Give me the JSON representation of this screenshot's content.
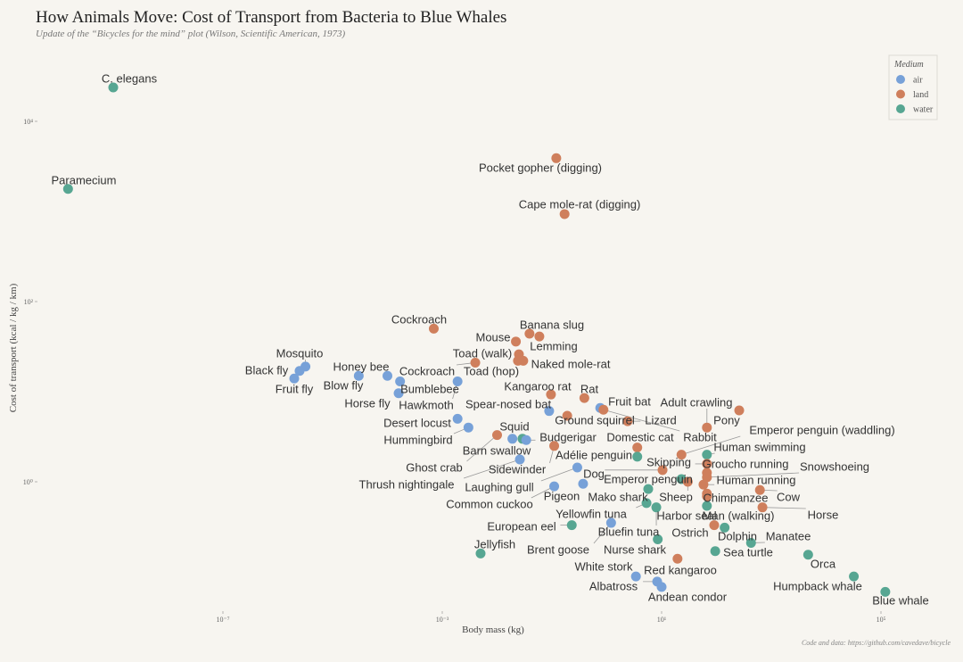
{
  "chart_data": {
    "type": "scatter",
    "title": "How Animals Move: Cost of Transport from Bacteria to Blue Whales",
    "subtitle": "Update of the “Bicycles for the mind” plot (Wilson, Scientific American, 1973)",
    "xlabel": "Body mass (kg)",
    "ylabel": "Cost of transport (kcal / kg / km)",
    "xscale": "log",
    "yscale": "log",
    "x_ticks": [
      {
        "value": 1e-07,
        "label": "10⁻⁷"
      },
      {
        "value": 0.001,
        "label": "10⁻³"
      },
      {
        "value": 10,
        "label": "10¹"
      },
      {
        "value": 100000,
        "label": "10⁵"
      }
    ],
    "y_ticks": [
      {
        "value": 1,
        "label": "10⁰"
      },
      {
        "value": 100,
        "label": "10²"
      },
      {
        "value": 10000,
        "label": "10⁴"
      }
    ],
    "grid": false,
    "caption": "Code and data: https://github.com/cavedave/bicycle",
    "legend": {
      "title": "Medium",
      "position": "top-right",
      "entries": [
        {
          "key": "air",
          "label": "air",
          "color": "#77a1d8"
        },
        {
          "key": "land",
          "label": "land",
          "color": "#cf7f5c"
        },
        {
          "key": "water",
          "label": "water",
          "color": "#57a692"
        }
      ]
    },
    "points": [
      {
        "name": "C. elegans",
        "medium": "water",
        "mass": 1e-09,
        "cost": 23800
      },
      {
        "name": "Paramecium",
        "medium": "water",
        "mass": 1.5e-10,
        "cost": 1780
      },
      {
        "name": "Pocket gopher (digging)",
        "medium": "land",
        "mass": 0.12,
        "cost": 3900
      },
      {
        "name": "Cape mole-rat (digging)",
        "medium": "land",
        "mass": 0.17,
        "cost": 935
      },
      {
        "name": "Cockroach",
        "medium": "land",
        "mass": 0.0007,
        "cost": 50
      },
      {
        "name": "Mosquito",
        "medium": "air",
        "mass": 3.2e-06,
        "cost": 19
      },
      {
        "name": "Black fly",
        "medium": "air",
        "mass": 2.5e-06,
        "cost": 17
      },
      {
        "name": "Fruit fly",
        "medium": "air",
        "mass": 2e-06,
        "cost": 14
      },
      {
        "name": "Honey bee",
        "medium": "air",
        "mass": 0.0001,
        "cost": 15
      },
      {
        "name": "Blow fly",
        "medium": "air",
        "mass": 3e-05,
        "cost": 15
      },
      {
        "name": "Bumblebee",
        "medium": "air",
        "mass": 0.00017,
        "cost": 13
      },
      {
        "name": "Horse fly",
        "medium": "air",
        "mass": 0.00016,
        "cost": 9.6
      },
      {
        "name": "Hawkmoth",
        "medium": "air",
        "mass": 0.0019,
        "cost": 13
      },
      {
        "name": "Cockroach",
        "medium": "land",
        "mass": 0.004,
        "cost": 21
      },
      {
        "name": "Toad (walk)",
        "medium": "land",
        "mass": 0.025,
        "cost": 26
      },
      {
        "name": "Toad (hop)",
        "medium": "land",
        "mass": 0.024,
        "cost": 22
      },
      {
        "name": "Naked mole-rat",
        "medium": "land",
        "mass": 0.03,
        "cost": 22
      },
      {
        "name": "Mouse",
        "medium": "land",
        "mass": 0.022,
        "cost": 36
      },
      {
        "name": "Banana slug",
        "medium": "land",
        "mass": 0.039,
        "cost": 44
      },
      {
        "name": "Lemming",
        "medium": "land",
        "mass": 0.059,
        "cost": 41
      },
      {
        "name": "Spear-nosed bat",
        "medium": "air",
        "mass": 0.089,
        "cost": 6.1
      },
      {
        "name": "Kangaroo rat",
        "medium": "land",
        "mass": 0.096,
        "cost": 9.3
      },
      {
        "name": "Rat",
        "medium": "land",
        "mass": 0.39,
        "cost": 8.5
      },
      {
        "name": "Ground squirrel",
        "medium": "land",
        "mass": 0.19,
        "cost": 5.4
      },
      {
        "name": "Fruit bat",
        "medium": "air",
        "mass": 0.76,
        "cost": 6.6
      },
      {
        "name": "Rabbit",
        "medium": "land",
        "mass": 0.87,
        "cost": 6.3
      },
      {
        "name": "Lizard",
        "medium": "land",
        "mass": 2.4,
        "cost": 4.7
      },
      {
        "name": "Desert locust",
        "medium": "air",
        "mass": 0.0019,
        "cost": 5.0
      },
      {
        "name": "Hummingbird",
        "medium": "air",
        "mass": 0.003,
        "cost": 4.0
      },
      {
        "name": "Ghost crab",
        "medium": "land",
        "mass": 0.01,
        "cost": 3.3
      },
      {
        "name": "Barn swallow",
        "medium": "air",
        "mass": 0.019,
        "cost": 3.0
      },
      {
        "name": "Squid",
        "medium": "water",
        "mass": 0.029,
        "cost": 3.0
      },
      {
        "name": "Budgerigar",
        "medium": "air",
        "mass": 0.034,
        "cost": 2.9
      },
      {
        "name": "Sidewinder",
        "medium": "land",
        "mass": 0.11,
        "cost": 2.5
      },
      {
        "name": "Thrush nightingale",
        "medium": "air",
        "mass": 0.026,
        "cost": 1.77
      },
      {
        "name": "Laughing gull",
        "medium": "air",
        "mass": 0.29,
        "cost": 1.44
      },
      {
        "name": "Common cuckoo",
        "medium": "air",
        "mass": 0.11,
        "cost": 0.89
      },
      {
        "name": "Pigeon",
        "medium": "air",
        "mass": 0.37,
        "cost": 0.95
      },
      {
        "name": "Dog",
        "medium": "land",
        "mass": 10.4,
        "cost": 1.35
      },
      {
        "name": "Domestic cat",
        "medium": "land",
        "mass": 3.6,
        "cost": 2.4
      },
      {
        "name": "Adélie penguin",
        "medium": "water",
        "mass": 3.6,
        "cost": 1.9
      },
      {
        "name": "Adult crawling",
        "medium": "land",
        "mass": 67,
        "cost": 4.0
      },
      {
        "name": "Pony",
        "medium": "land",
        "mass": 260,
        "cost": 6.2
      },
      {
        "name": "Emperor penguin (waddling)",
        "medium": "land",
        "mass": 23,
        "cost": 2.0
      },
      {
        "name": "Human swimming",
        "medium": "water",
        "mass": 67,
        "cost": 2.0
      },
      {
        "name": "Skipping",
        "medium": "land",
        "mass": 67,
        "cost": 1.58
      },
      {
        "name": "Groucho running",
        "medium": "land",
        "mass": 67,
        "cost": 1.26
      },
      {
        "name": "Snowshoeing",
        "medium": "land",
        "mass": 67,
        "cost": 1.12
      },
      {
        "name": "Human running",
        "medium": "land",
        "mass": 58,
        "cost": 0.93
      },
      {
        "name": "Chimpanzee",
        "medium": "land",
        "mass": 67,
        "cost": 0.74
      },
      {
        "name": "Man (walking)",
        "medium": "land",
        "mass": 67,
        "cost": 0.69
      },
      {
        "name": "Cow",
        "medium": "land",
        "mass": 620,
        "cost": 0.81
      },
      {
        "name": "Horse",
        "medium": "land",
        "mass": 690,
        "cost": 0.52
      },
      {
        "name": "Emperor penguin",
        "medium": "water",
        "mass": 23,
        "cost": 1.07
      },
      {
        "name": "Sheep",
        "medium": "land",
        "mass": 30,
        "cost": 1.0
      },
      {
        "name": "Mako shark",
        "medium": "water",
        "mass": 5.7,
        "cost": 0.83
      },
      {
        "name": "Yellowfin tuna",
        "medium": "water",
        "mass": 5.3,
        "cost": 0.58
      },
      {
        "name": "Bluefin tuna",
        "medium": "water",
        "mass": 8,
        "cost": 0.52
      },
      {
        "name": "Harbor seal",
        "medium": "water",
        "mass": 67,
        "cost": 0.54
      },
      {
        "name": "European eel",
        "medium": "water",
        "mass": 0.23,
        "cost": 0.33
      },
      {
        "name": "Brent goose",
        "medium": "air",
        "mass": 1.2,
        "cost": 0.35
      },
      {
        "name": "Ostrich",
        "medium": "land",
        "mass": 91,
        "cost": 0.33
      },
      {
        "name": "Dolphin",
        "medium": "water",
        "mass": 141,
        "cost": 0.31
      },
      {
        "name": "Manatee",
        "medium": "water",
        "mass": 427,
        "cost": 0.21
      },
      {
        "name": "Sea turtle",
        "medium": "water",
        "mass": 95,
        "cost": 0.17
      },
      {
        "name": "Nurse shark",
        "medium": "water",
        "mass": 8.5,
        "cost": 0.23
      },
      {
        "name": "Jellyfish",
        "medium": "water",
        "mass": 0.005,
        "cost": 0.16
      },
      {
        "name": "Red kangaroo",
        "medium": "land",
        "mass": 19.5,
        "cost": 0.14
      },
      {
        "name": "Orca",
        "medium": "water",
        "mass": 4700,
        "cost": 0.155
      },
      {
        "name": "White stork",
        "medium": "air",
        "mass": 3.4,
        "cost": 0.089
      },
      {
        "name": "Albatross",
        "medium": "air",
        "mass": 8.3,
        "cost": 0.078
      },
      {
        "name": "Andean condor",
        "medium": "air",
        "mass": 10,
        "cost": 0.068
      },
      {
        "name": "Humpback whale",
        "medium": "water",
        "mass": 32000,
        "cost": 0.089
      },
      {
        "name": "Blue whale",
        "medium": "water",
        "mass": 120000,
        "cost": 0.06
      }
    ]
  }
}
